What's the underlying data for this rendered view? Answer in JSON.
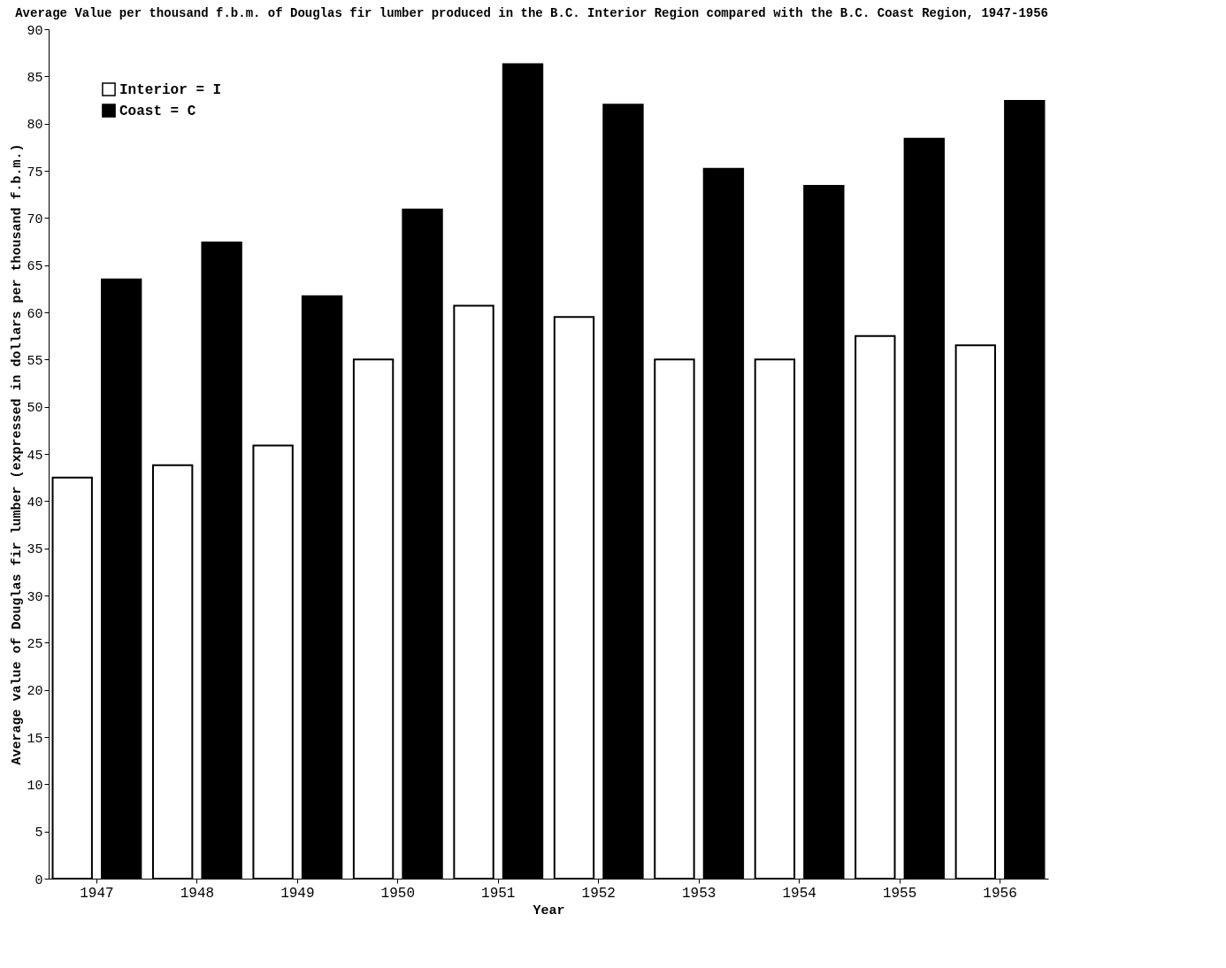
{
  "chart_data": {
    "type": "bar",
    "title": "Average Value per thousand f.b.m. of Douglas fir lumber produced in the B.C. Interior Region compared with the B.C. Coast Region, 1947-1956",
    "xlabel": "Year",
    "ylabel": "Average value of Douglas fir lumber\n(expressed in dollars per thousand f.b.m.)",
    "categories": [
      "1947",
      "1948",
      "1949",
      "1950",
      "1951",
      "1952",
      "1953",
      "1954",
      "1955",
      "1956"
    ],
    "series": [
      {
        "name": "Interior = I",
        "color": "#ffffff",
        "values": [
          42.5,
          43.8,
          45.9,
          55,
          60.7,
          59.5,
          55,
          55,
          57.5,
          56.5
        ]
      },
      {
        "name": "Coast = C",
        "color": "#000000",
        "values": [
          63.5,
          67.4,
          61.7,
          70.9,
          86.3,
          82,
          75.2,
          73.4,
          78.4,
          82.4
        ]
      }
    ],
    "ylim": [
      0,
      90
    ],
    "yticks": [
      0,
      5,
      10,
      15,
      20,
      25,
      30,
      35,
      40,
      45,
      50,
      55,
      60,
      65,
      70,
      75,
      80,
      85,
      90
    ],
    "grid": false,
    "legend": "top left"
  }
}
